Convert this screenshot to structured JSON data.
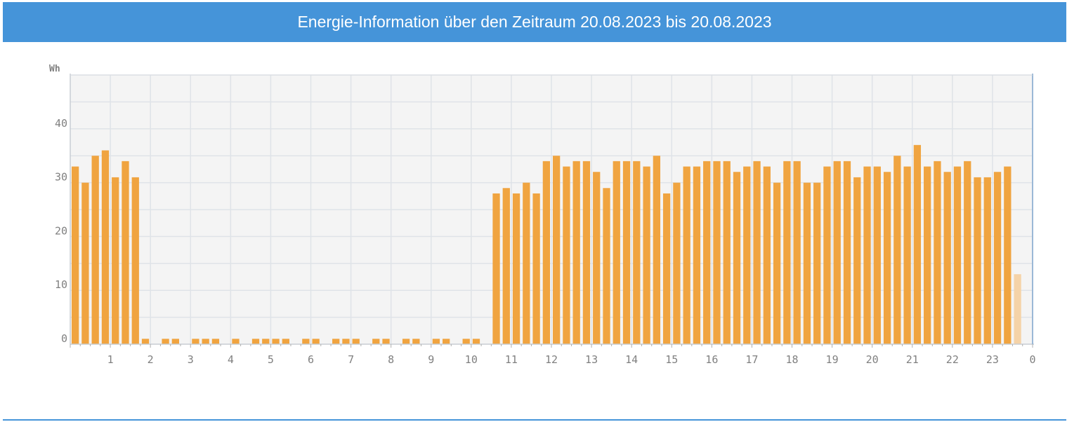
{
  "header": {
    "title": "Energie-Information über den Zeitraum 20.08.2023 bis 20.08.2023"
  },
  "colors": {
    "header_bg": "#4594d9",
    "bar": "#f0a440",
    "bar_partial": "#f5d3a8",
    "plot_bg": "#f4f4f4",
    "grid": "#dfe3e8"
  },
  "chart_data": {
    "type": "bar",
    "ylabel": "Wh",
    "ylim": [
      0,
      50
    ],
    "yticks": [
      0,
      10,
      20,
      30,
      40
    ],
    "xlim": [
      0,
      24
    ],
    "xticks": [
      "1",
      "2",
      "3",
      "4",
      "5",
      "6",
      "7",
      "8",
      "9",
      "10",
      "11",
      "12",
      "13",
      "14",
      "15",
      "16",
      "17",
      "18",
      "19",
      "20",
      "21",
      "22",
      "23",
      "0"
    ],
    "interval_minutes": 15,
    "grid": true,
    "values": [
      33,
      30,
      35,
      36,
      31,
      34,
      31,
      1,
      0,
      1,
      1,
      0,
      1,
      1,
      1,
      0,
      1,
      0,
      1,
      1,
      1,
      1,
      0,
      1,
      1,
      0,
      1,
      1,
      1,
      0,
      1,
      1,
      0,
      1,
      1,
      0,
      1,
      1,
      0,
      1,
      1,
      0,
      28,
      29,
      28,
      30,
      28,
      34,
      35,
      33,
      34,
      34,
      32,
      29,
      34,
      34,
      34,
      33,
      35,
      28,
      30,
      33,
      33,
      34,
      34,
      34,
      32,
      33,
      34,
      33,
      30,
      34,
      34,
      30,
      30,
      33,
      34,
      34,
      31,
      33,
      33,
      32,
      35,
      33,
      37,
      33,
      34,
      32,
      33,
      34,
      31,
      31,
      32,
      33,
      13
    ],
    "partial_last": true
  }
}
